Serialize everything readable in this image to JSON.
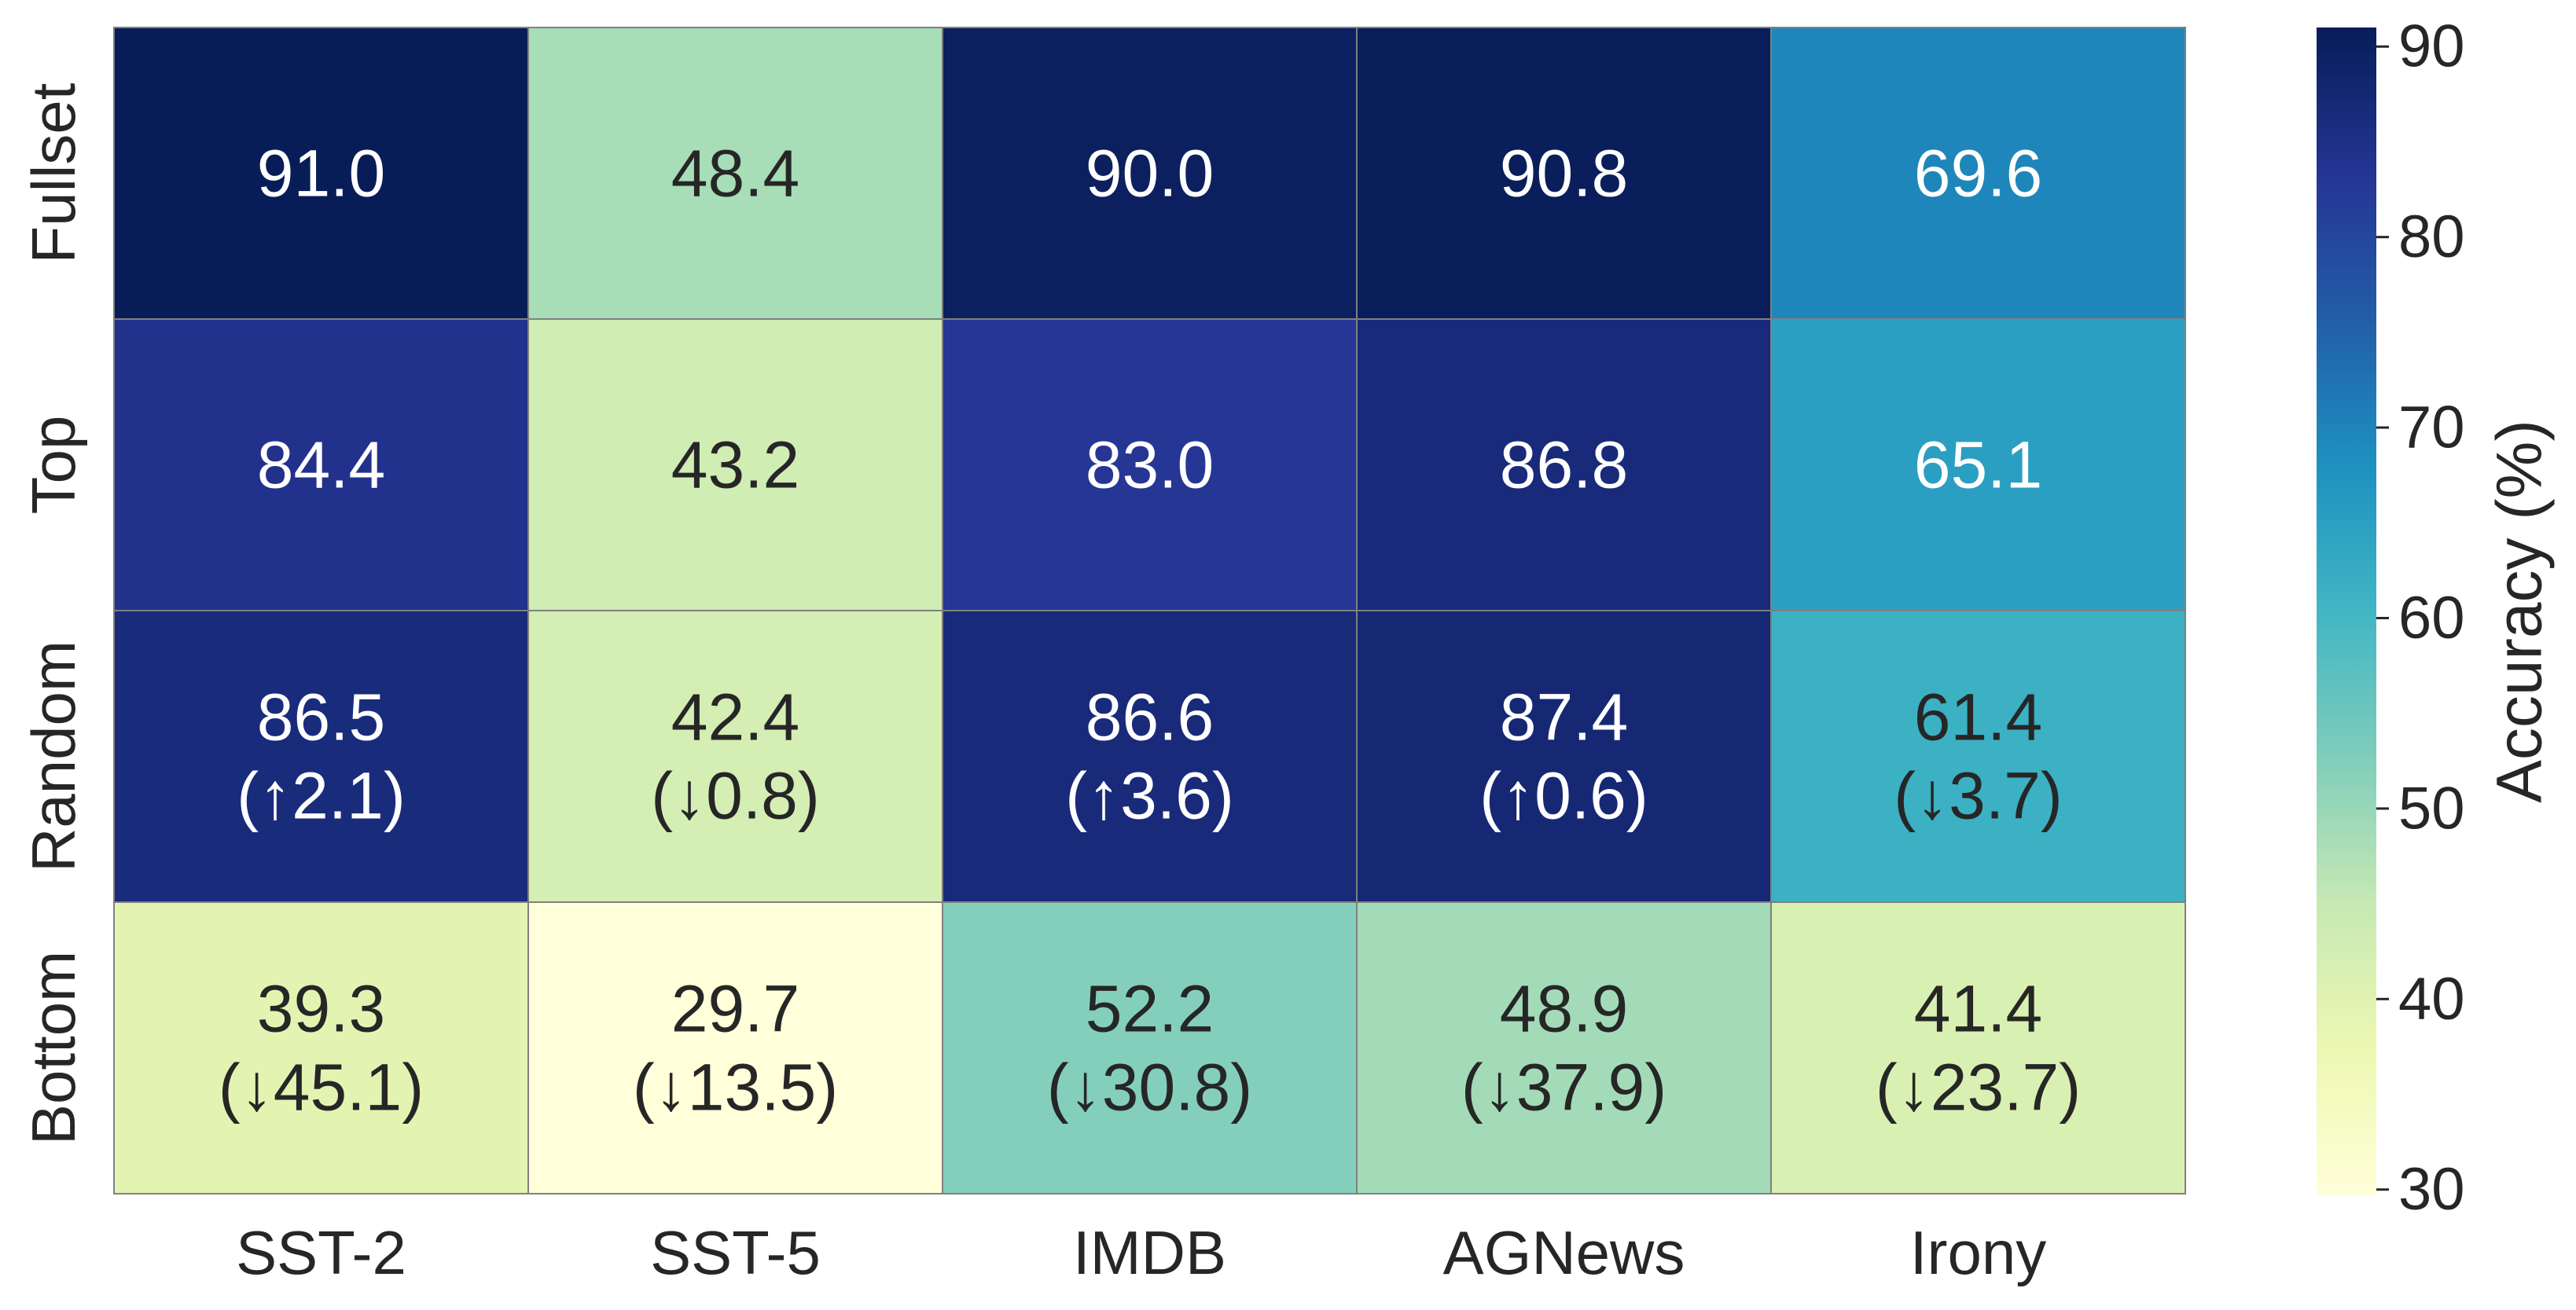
{
  "chart_data": {
    "type": "heatmap",
    "title": "",
    "x_categories": [
      "SST-2",
      "SST-5",
      "IMDB",
      "AGNews",
      "Irony"
    ],
    "y_categories": [
      "Fullset",
      "Top",
      "Random",
      "Bottom"
    ],
    "values": [
      [
        91.0,
        48.4,
        90.0,
        90.8,
        69.6
      ],
      [
        84.4,
        43.2,
        83.0,
        86.8,
        65.1
      ],
      [
        86.5,
        42.4,
        86.6,
        87.4,
        61.4
      ],
      [
        39.3,
        29.7,
        52.2,
        48.9,
        41.4
      ]
    ],
    "cell_labels": [
      [
        "91.0",
        "48.4",
        "90.0",
        "90.8",
        "69.6"
      ],
      [
        "84.4",
        "43.2",
        "83.0",
        "86.8",
        "65.1"
      ],
      [
        "86.5\n(↑2.1)",
        "42.4\n(↓0.8)",
        "86.6\n(↑3.6)",
        "87.4\n(↑0.6)",
        "61.4\n(↓3.7)"
      ],
      [
        "39.3\n(↓45.1)",
        "29.7\n(↓13.5)",
        "52.2\n(↓30.8)",
        "48.9\n(↓37.9)",
        "41.4\n(↓23.7)"
      ]
    ],
    "colorbar": {
      "label": "Accuracy (%)",
      "ticks": [
        30,
        40,
        50,
        60,
        70,
        80,
        90
      ],
      "vmin": 29.7,
      "vmax": 91.0,
      "colormap": "YlGnBu"
    },
    "colorscale_stops": [
      "#ffffd9",
      "#edf8b1",
      "#c7e9b4",
      "#7fcdbb",
      "#41b6c4",
      "#1d91c0",
      "#225ea8",
      "#253494",
      "#081d58"
    ],
    "cell_border_color": "#808080",
    "text_dark_color": "#262626",
    "text_light_color": "#ffffff"
  }
}
